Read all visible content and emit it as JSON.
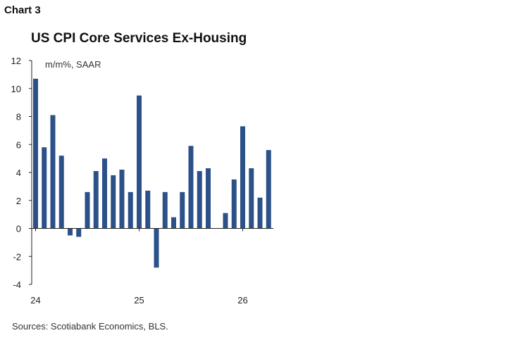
{
  "chart_label": "Chart 3",
  "source": "Sources: Scotiabank Economics, BLS.",
  "chart_data": {
    "type": "bar",
    "title": "US CPI Core Services Ex-Housing",
    "ylabel": "m/m%, SAAR",
    "xlabel": "",
    "ylim": [
      -4,
      12
    ],
    "yticks": [
      -4,
      -2,
      0,
      2,
      4,
      6,
      8,
      10,
      12
    ],
    "grid": false,
    "legend": "none",
    "bar_color": "#2b5188",
    "x_tick_labels": [
      {
        "label": "24",
        "index": 0
      },
      {
        "label": "25",
        "index": 12
      },
      {
        "label": "26",
        "index": 24
      }
    ],
    "values": [
      10.7,
      5.8,
      8.1,
      5.2,
      -0.5,
      -0.6,
      2.6,
      4.1,
      5.0,
      3.8,
      4.2,
      2.6,
      9.5,
      2.7,
      -2.8,
      2.6,
      0.8,
      2.6,
      5.9,
      4.1,
      4.3,
      null,
      1.1,
      3.5,
      7.3,
      4.3,
      2.2,
      5.6
    ]
  }
}
